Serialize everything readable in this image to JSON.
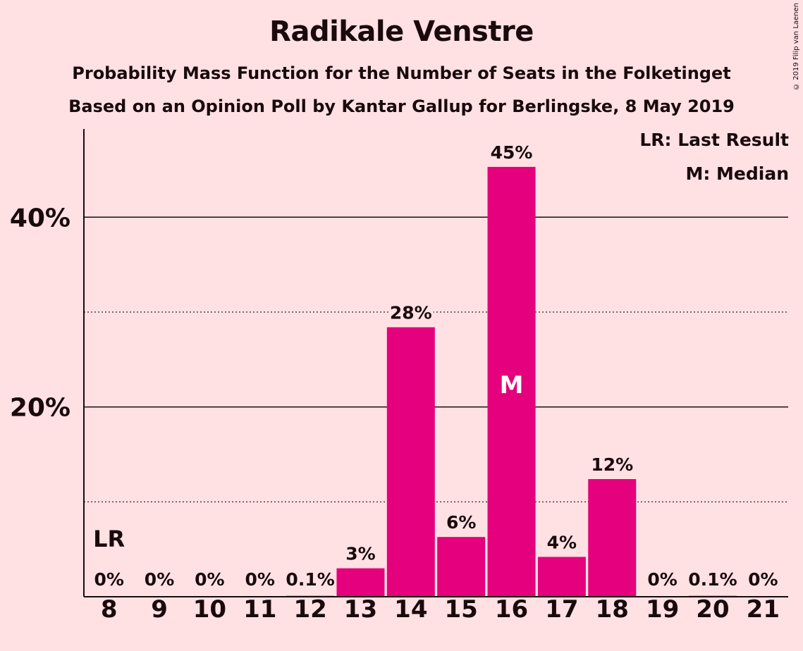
{
  "title": "Radikale Venstre",
  "subtitle_1": "Probability Mass Function for the Number of Seats in the Folketinget",
  "subtitle_2": "Based on an Opinion Poll by Kantar Gallup for Berlingske, 8 May 2019",
  "copyright": "© 2019 Filip van Laenen",
  "legend": {
    "last_result": "LR: Last Result",
    "median": "M: Median"
  },
  "colors": {
    "background": "#FFE1E4",
    "bar": "#E5007D",
    "text": "#1a0a0c"
  },
  "chart_data": {
    "type": "bar",
    "categories": [
      "8",
      "9",
      "10",
      "11",
      "12",
      "13",
      "14",
      "15",
      "16",
      "17",
      "18",
      "19",
      "20",
      "21"
    ],
    "values": [
      0,
      0,
      0,
      0,
      0.1,
      3,
      28.4,
      6.3,
      45.3,
      4.2,
      12.4,
      0,
      0.1,
      0
    ],
    "data_labels": [
      "0%",
      "0%",
      "0%",
      "0%",
      "0.1%",
      "3%",
      "28%",
      "6%",
      "45%",
      "4%",
      "12%",
      "0%",
      "0.1%",
      "0%"
    ],
    "ylim": [
      0,
      49.3
    ],
    "yticks": [
      {
        "value": 20,
        "label": "20%"
      },
      {
        "value": 40,
        "label": "40%"
      }
    ],
    "minor_gridlines": [
      10,
      30
    ],
    "last_result": {
      "category": "8",
      "label": "LR"
    },
    "median": {
      "category": "16",
      "label": "M"
    },
    "grid": true,
    "legend_position": "top-right"
  }
}
